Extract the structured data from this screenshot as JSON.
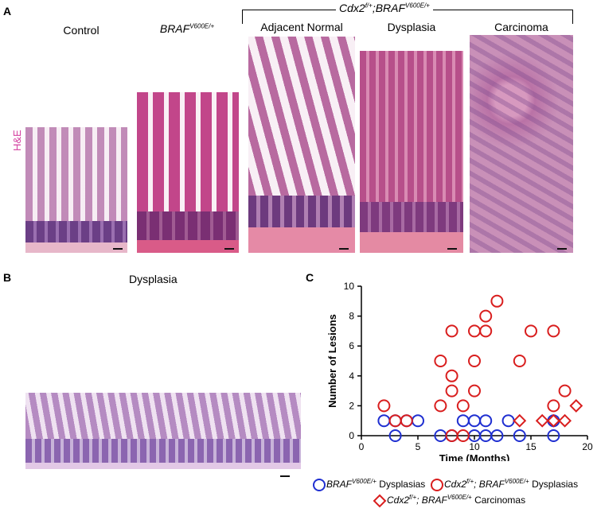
{
  "panel_a": {
    "letter": "A",
    "bracket_label_main": "Cdx2",
    "bracket_label_sup1": "f/+",
    "bracket_label_mid": ";BRAF",
    "bracket_label_sup2": "V600E/+",
    "stain_label": "H&E",
    "columns": [
      {
        "title": "Control"
      },
      {
        "title_main": "BRAF",
        "title_sup": "V600E/+"
      },
      {
        "title": "Adjacent Normal"
      },
      {
        "title": "Dysplasia"
      },
      {
        "title": "Carcinoma"
      }
    ]
  },
  "panel_b": {
    "letter": "B",
    "title": "Dysplasia"
  },
  "panel_c": {
    "letter": "C"
  },
  "chart_data": {
    "type": "scatter",
    "xlabel": "Time (Months)",
    "ylabel": "Number of Lesions",
    "xlim": [
      0,
      20
    ],
    "ylim": [
      0,
      10
    ],
    "xticks": [
      0,
      5,
      10,
      15,
      20
    ],
    "yticks": [
      0,
      2,
      4,
      6,
      8,
      10
    ],
    "series": [
      {
        "name": "BRAF V600E/+ Dysplasias",
        "marker": "circle",
        "color": "#1f2fd1",
        "points": [
          [
            2,
            1
          ],
          [
            3,
            0
          ],
          [
            3,
            1
          ],
          [
            4,
            1
          ],
          [
            5,
            1
          ],
          [
            7,
            0
          ],
          [
            8,
            0
          ],
          [
            9,
            1
          ],
          [
            10,
            0
          ],
          [
            10,
            1
          ],
          [
            11,
            0
          ],
          [
            11,
            1
          ],
          [
            12,
            0
          ],
          [
            13,
            1
          ],
          [
            14,
            0
          ],
          [
            17,
            0
          ],
          [
            17,
            1
          ]
        ]
      },
      {
        "name": "Cdx2 f/+; BRAF V600E/+ Dysplasias",
        "marker": "circle",
        "color": "#d91e1e",
        "points": [
          [
            2,
            2
          ],
          [
            3,
            1
          ],
          [
            4,
            1
          ],
          [
            7,
            2
          ],
          [
            7,
            5
          ],
          [
            8,
            0
          ],
          [
            8,
            3
          ],
          [
            8,
            4
          ],
          [
            8,
            7
          ],
          [
            9,
            0
          ],
          [
            9,
            2
          ],
          [
            10,
            3
          ],
          [
            10,
            5
          ],
          [
            10,
            7
          ],
          [
            11,
            7
          ],
          [
            11,
            8
          ],
          [
            12,
            9
          ],
          [
            14,
            5
          ],
          [
            15,
            7
          ],
          [
            17,
            2
          ],
          [
            17,
            7
          ],
          [
            18,
            3
          ]
        ]
      },
      {
        "name": "Cdx2 f/+; BRAF V600E/+ Carcinomas",
        "marker": "diamond",
        "color": "#d91e1e",
        "points": [
          [
            14,
            1
          ],
          [
            16,
            1
          ],
          [
            17,
            1
          ],
          [
            18,
            1
          ],
          [
            19,
            2
          ]
        ]
      }
    ]
  },
  "legend": {
    "item1_main": "BRAF",
    "item1_sup": "V600E/+",
    "item1_tail": " Dysplasias",
    "item2_main": "Cdx2",
    "item2_sup1": "f/+",
    "item2_mid": "; BRAF",
    "item2_sup2": "V600E/+",
    "item2_tail": " Dysplasias",
    "item3_main": "Cdx2",
    "item3_sup1": "f/+",
    "item3_mid": "; BRAF",
    "item3_sup2": "V600E/+",
    "item3_tail": " Carcinomas"
  }
}
